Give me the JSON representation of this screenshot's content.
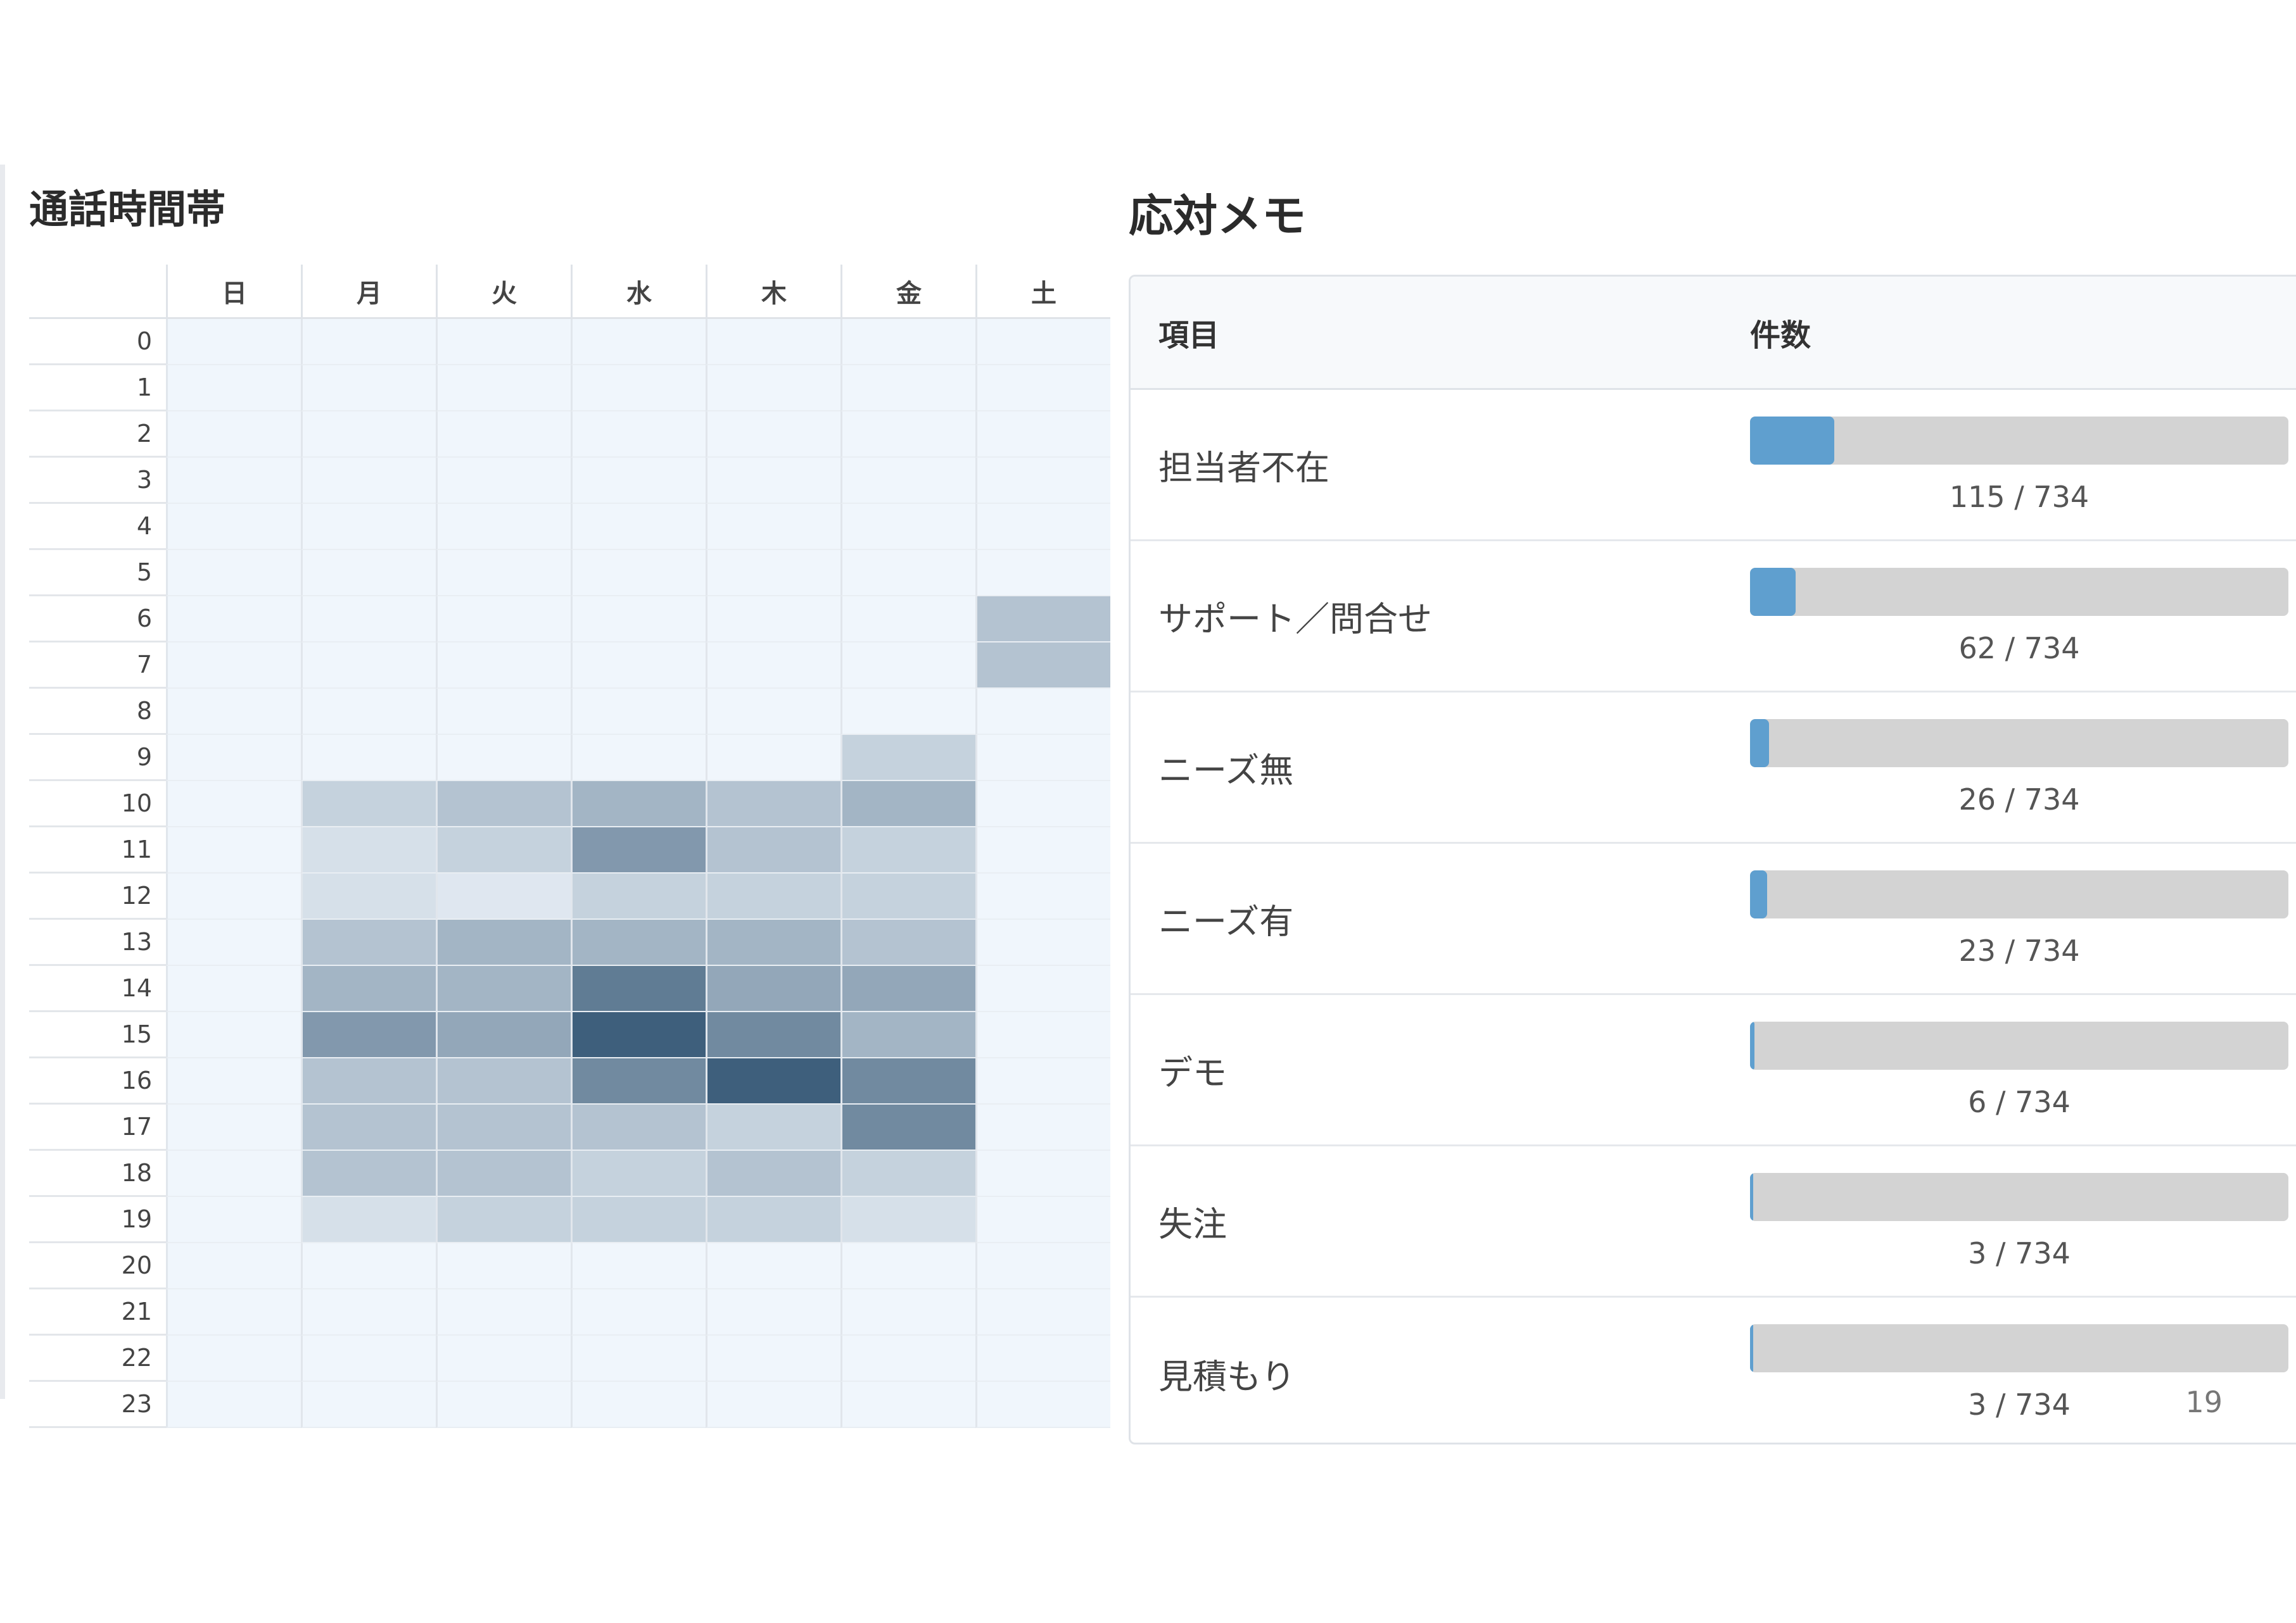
{
  "heatmap": {
    "title": "通話時間帯"
  },
  "memo": {
    "title": "応対メモ",
    "header_item": "項目",
    "header_count": "件数",
    "footer_number": "19"
  },
  "colors": {
    "heat_empty": "#f0f6fc",
    "heat_dark": "#3e5f7c",
    "bar_fill": "#5f9fcf",
    "bar_track": "#d3d3d3"
  },
  "chart_data": [
    {
      "type": "heatmap",
      "title": "通話時間帯",
      "x_categories": [
        "日",
        "月",
        "火",
        "水",
        "木",
        "金",
        "土"
      ],
      "y_categories": [
        "0",
        "1",
        "2",
        "3",
        "4",
        "5",
        "6",
        "7",
        "8",
        "9",
        "10",
        "11",
        "12",
        "13",
        "14",
        "15",
        "16",
        "17",
        "18",
        "19",
        "20",
        "21",
        "22",
        "23"
      ],
      "values": [
        [
          0,
          0,
          0,
          0,
          0,
          0,
          0
        ],
        [
          0,
          0,
          0,
          0,
          0,
          0,
          0
        ],
        [
          0,
          0,
          0,
          0,
          0,
          0,
          0
        ],
        [
          0,
          0,
          0,
          0,
          0,
          0,
          0
        ],
        [
          0,
          0,
          0,
          0,
          0,
          0,
          0
        ],
        [
          0,
          0,
          0,
          0,
          0,
          0,
          0
        ],
        [
          0,
          0,
          0,
          0,
          0,
          0,
          3
        ],
        [
          0,
          0,
          0,
          0,
          0,
          0,
          3
        ],
        [
          0,
          0,
          0,
          0,
          0,
          0,
          0
        ],
        [
          0,
          0,
          0,
          0,
          0,
          2,
          0
        ],
        [
          0,
          2,
          3,
          4,
          3,
          4,
          0
        ],
        [
          0,
          1,
          2,
          6,
          3,
          2,
          0
        ],
        [
          0,
          1,
          0.5,
          2,
          2,
          2,
          0
        ],
        [
          0,
          3,
          4,
          4,
          4,
          3,
          0
        ],
        [
          0,
          4,
          4,
          8,
          5,
          5,
          0
        ],
        [
          0,
          6,
          5,
          10,
          7,
          4,
          0
        ],
        [
          0,
          3,
          3,
          7,
          10,
          7,
          0
        ],
        [
          0,
          3,
          3,
          3,
          2,
          7,
          0
        ],
        [
          0,
          3,
          3,
          2,
          3,
          2,
          0
        ],
        [
          0,
          1,
          2,
          2,
          2,
          1,
          0
        ],
        [
          0,
          0,
          0,
          0,
          0,
          0,
          0
        ],
        [
          0,
          0,
          0,
          0,
          0,
          0,
          0
        ],
        [
          0,
          0,
          0,
          0,
          0,
          0,
          0
        ],
        [
          0,
          0,
          0,
          0,
          0,
          0,
          0
        ]
      ],
      "max": 10
    },
    {
      "type": "bar",
      "title": "応対メモ",
      "total": 734,
      "categories": [
        "担当者不在",
        "サポート／問合せ",
        "ニーズ無",
        "ニーズ有",
        "デモ",
        "失注",
        "見積もり"
      ],
      "values": [
        115,
        62,
        26,
        23,
        6,
        3,
        3
      ],
      "labels": [
        "115 / 734",
        "62 / 734",
        "26 / 734",
        "23 / 734",
        "6 / 734",
        "3 / 734",
        "3 / 734"
      ]
    }
  ]
}
